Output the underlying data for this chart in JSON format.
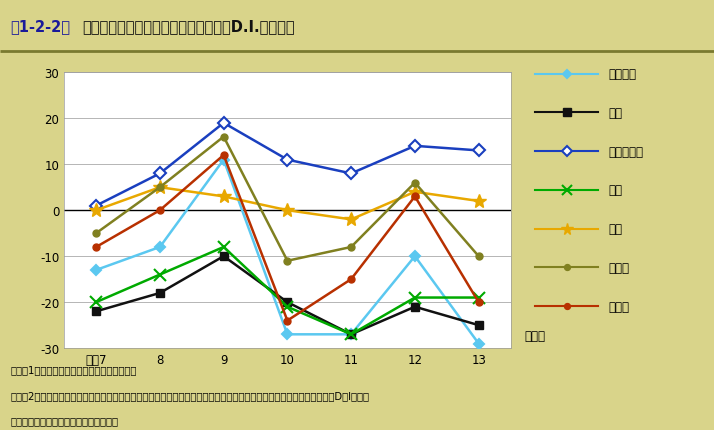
{
  "title_prefix": "第1-2-2図",
  "title_main": "　製造業における職種別過不足指数（D.I.）の推移",
  "x_labels": [
    "平成7",
    "8",
    "9",
    "10",
    "11",
    "12",
    "13"
  ],
  "x_values": [
    7,
    8,
    9,
    10,
    11,
    12,
    13
  ],
  "xlabel_suffix": "（年）",
  "ylim": [
    -30,
    30
  ],
  "yticks": [
    -30,
    -20,
    -10,
    0,
    10,
    20,
    30
  ],
  "series": [
    {
      "label": "全労働者",
      "values": [
        -13,
        -8,
        11,
        -27,
        -27,
        -10,
        -29
      ],
      "color": "#5bc8f0",
      "marker": "D",
      "mfc": "#5bc8f0",
      "mec": "#5bc8f0",
      "linewidth": 1.8,
      "markersize": 5
    },
    {
      "label": "管理",
      "values": [
        -22,
        -18,
        -10,
        -20,
        -27,
        -21,
        -25
      ],
      "color": "#111111",
      "marker": "s",
      "mfc": "#111111",
      "mec": "#111111",
      "linewidth": 1.8,
      "markersize": 6
    },
    {
      "label": "専門・技術",
      "values": [
        1,
        8,
        19,
        11,
        8,
        14,
        13
      ],
      "color": "#1a3fbf",
      "marker": "D",
      "mfc": "white",
      "mec": "#1a3fbf",
      "linewidth": 1.8,
      "markersize": 6
    },
    {
      "label": "事務",
      "values": [
        -20,
        -14,
        -8,
        -21,
        -27,
        -19,
        -19
      ],
      "color": "#00aa00",
      "marker": "x",
      "mfc": "#00aa00",
      "mec": "#00aa00",
      "linewidth": 1.8,
      "markersize": 8
    },
    {
      "label": "販売",
      "values": [
        0,
        5,
        3,
        0,
        -2,
        4,
        2
      ],
      "color": "#e8a800",
      "marker": "*",
      "mfc": "#e8a800",
      "mec": "#e8a800",
      "linewidth": 1.8,
      "markersize": 10
    },
    {
      "label": "技能工",
      "values": [
        -5,
        5,
        16,
        -11,
        -8,
        6,
        -10
      ],
      "color": "#808020",
      "marker": "o",
      "mfc": "#808020",
      "mec": "#808020",
      "linewidth": 1.8,
      "markersize": 5
    },
    {
      "label": "単純工",
      "values": [
        -8,
        0,
        12,
        -24,
        -15,
        3,
        -20
      ],
      "color": "#b83000",
      "marker": "o",
      "mfc": "#b83000",
      "mec": "#b83000",
      "linewidth": 1.8,
      "markersize": 5
    }
  ],
  "bg_color": "#d9d48a",
  "plot_bg_color": "#ffffff",
  "grid_color": "#999999",
  "legend_bg": "#fafaea",
  "hline_color": "#999999",
  "note_line1": "注）　1．各年とも８月調査の数値を用いた。",
  "note_line2": "　　　2．数値は労働者が「不足」と回答した事業所の比率から「過剰」と回答した事業所の比率を引いた値である（＝D．I．）。",
  "note_line3": "資料：厚生労働省「労働経済動向調査」"
}
